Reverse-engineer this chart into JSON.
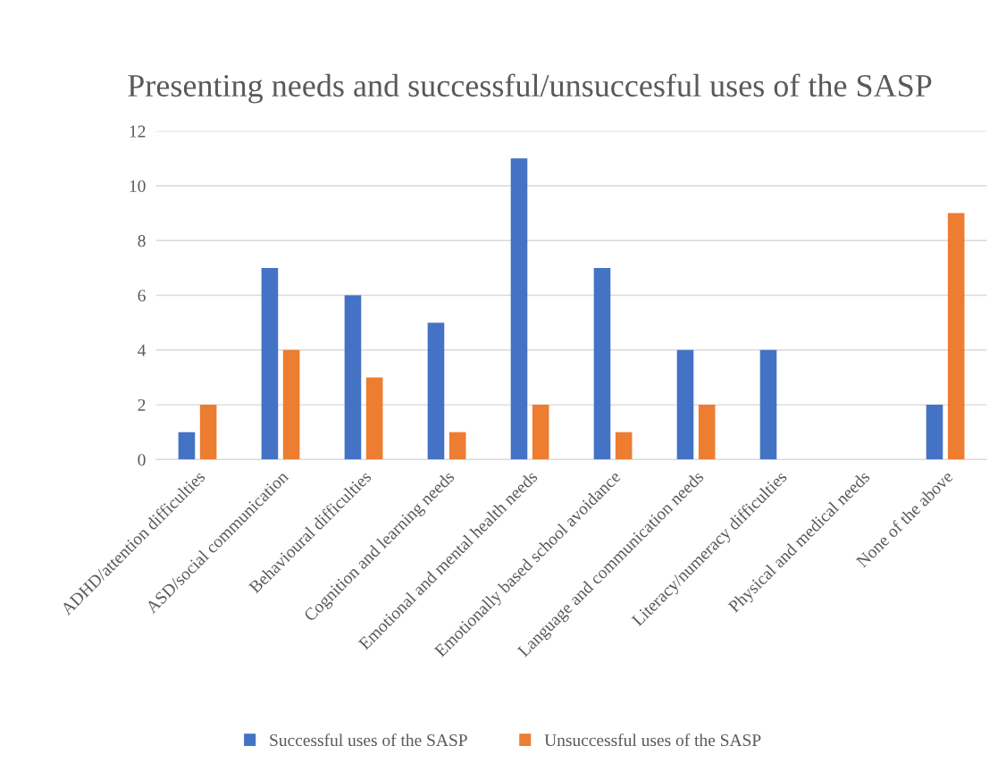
{
  "chart_data": {
    "type": "bar",
    "title": "Presenting needs and successful/unsuccesful uses of the SASP",
    "categories": [
      "ADHD/attention difficulties",
      "ASD/social communication",
      "Behavioural difficulties",
      "Cognition and learning needs",
      "Emotional and mental health needs",
      "Emotionally based school avoidance",
      "Language and communication needs",
      "Literacy/numeracy difficulties",
      "Physical and medical needs",
      "None of the above"
    ],
    "series": [
      {
        "name": "Successful uses of the SASP",
        "color": "#4472c4",
        "values": [
          1,
          7,
          6,
          5,
          11,
          7,
          4,
          4,
          0,
          2
        ]
      },
      {
        "name": "Unsuccessful uses of the SASP",
        "color": "#ed7d31",
        "values": [
          2,
          4,
          3,
          1,
          2,
          1,
          2,
          0,
          0,
          9
        ]
      }
    ],
    "ylim": [
      0,
      12
    ],
    "yticks": [
      0,
      2,
      4,
      6,
      8,
      10,
      12
    ],
    "grid": "y",
    "legend": "bottom"
  }
}
